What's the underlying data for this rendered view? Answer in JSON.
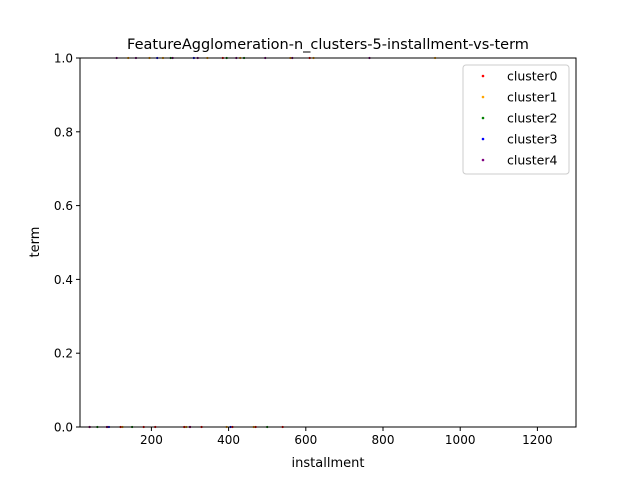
{
  "chart_data": {
    "type": "scatter",
    "title": "FeatureAgglomeration-n_clusters-5-installment-vs-term",
    "xlabel": "installment",
    "ylabel": "term",
    "xlim": [
      15,
      1300
    ],
    "ylim": [
      0,
      1
    ],
    "xticks": [
      200,
      400,
      600,
      800,
      1000,
      1200
    ],
    "yticks": [
      0.0,
      0.2,
      0.4,
      0.6,
      0.8,
      1.0
    ],
    "xtick_labels": [
      "200",
      "400",
      "600",
      "800",
      "1000",
      "1200"
    ],
    "ytick_labels": [
      "0.0",
      "0.2",
      "0.4",
      "0.6",
      "0.8",
      "1.0"
    ],
    "grid": false,
    "legend_position": "top-right",
    "series": [
      {
        "name": "cluster0",
        "color": "#ff0000",
        "points": [
          [
            40,
            0
          ],
          [
            85,
            0
          ],
          [
            120,
            0
          ],
          [
            180,
            0
          ],
          [
            210,
            0
          ],
          [
            285,
            0
          ],
          [
            300,
            0
          ],
          [
            330,
            0
          ],
          [
            385,
            1
          ],
          [
            410,
            0
          ],
          [
            470,
            0
          ],
          [
            540,
            0
          ],
          [
            610,
            1
          ]
        ]
      },
      {
        "name": "cluster1",
        "color": "#ffa500",
        "points": [
          [
            125,
            0
          ],
          [
            140,
            1
          ],
          [
            195,
            1
          ],
          [
            230,
            1
          ],
          [
            290,
            0
          ],
          [
            345,
            1
          ],
          [
            395,
            0
          ],
          [
            430,
            1
          ],
          [
            465,
            0
          ],
          [
            560,
            1
          ],
          [
            620,
            1
          ],
          [
            935,
            1
          ]
        ]
      },
      {
        "name": "cluster2",
        "color": "#008000",
        "points": [
          [
            60,
            0
          ],
          [
            150,
            0
          ],
          [
            250,
            1
          ],
          [
            395,
            1
          ],
          [
            440,
            1
          ],
          [
            500,
            0
          ]
        ]
      },
      {
        "name": "cluster3",
        "color": "#0000ff",
        "points": [
          [
            90,
            0
          ],
          [
            215,
            1
          ],
          [
            310,
            1
          ],
          [
            405,
            0
          ]
        ]
      },
      {
        "name": "cluster4",
        "color": "#800080",
        "points": [
          [
            40,
            0
          ],
          [
            85,
            0
          ],
          [
            110,
            1
          ],
          [
            160,
            1
          ],
          [
            255,
            1
          ],
          [
            300,
            0
          ],
          [
            320,
            1
          ],
          [
            420,
            1
          ],
          [
            495,
            1
          ],
          [
            565,
            1
          ],
          [
            765,
            1
          ]
        ]
      }
    ]
  }
}
